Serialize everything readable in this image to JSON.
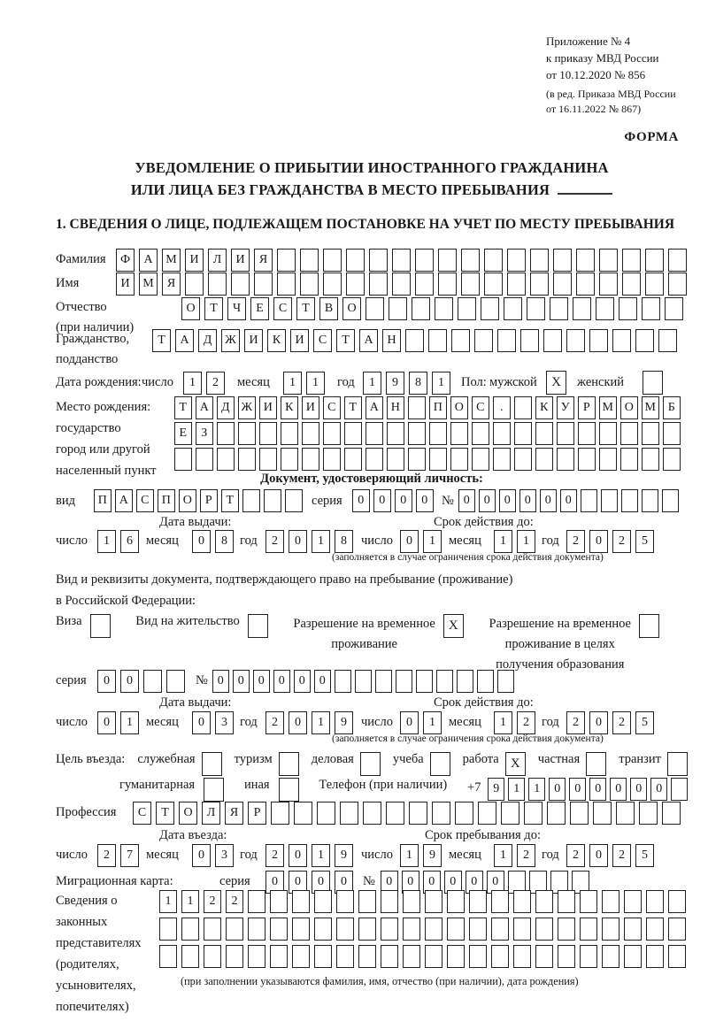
{
  "meta": {
    "annex": [
      "Приложение № 4",
      "к приказу МВД России",
      "от 10.12.2020 № 856"
    ],
    "revision": [
      "(в ред. Приказа МВД России",
      "от 16.11.2022 № 867)"
    ],
    "forma": "ФОРМА"
  },
  "title": {
    "line1": "УВЕДОМЛЕНИЕ О ПРИБЫТИИ ИНОСТРАННОГО ГРАЖДАНИНА",
    "line2": "ИЛИ ЛИЦА БЕЗ ГРАЖДАНСТВА В МЕСТО ПРЕБЫВАНИЯ"
  },
  "section1": "1. СВЕДЕНИЯ О ЛИЦЕ, ПОДЛЕЖАЩЕМ ПОСТАНОВКЕ НА УЧЕТ ПО МЕСТУ ПРЕБЫВАНИЯ",
  "labels": {
    "surname": "Фамилия",
    "given_name": "Имя",
    "patronymic1": "Отчество",
    "patronymic2": "(при наличии)",
    "citizenship1": "Гражданство,",
    "citizenship2": "подданство",
    "birth_date": "Дата рождения:",
    "day": "число",
    "month": "месяц",
    "year": "год",
    "sex": "Пол:",
    "male": "мужской",
    "female": "женский",
    "birthplace": "Место рождения:",
    "state": "государство",
    "city1": "город или другой",
    "city2": "населенный пункт",
    "id_doc_header": "Документ, удостоверяющий личность:",
    "kind": "вид",
    "series": "серия",
    "number_sign": "№",
    "issue_date": "Дата выдачи:",
    "valid_until": "Срок действия до:",
    "valid_note": "(заполняется в случае ограничения срока действия документа)",
    "right_doc1": "Вид и реквизиты документа, подтверждающего право на пребывание (проживание)",
    "right_doc2": "в Российской Федерации:",
    "visa": "Виза",
    "residence_permit": "Вид на жительство",
    "temp_permit1": "Разрешение на временное",
    "temp_permit2": "проживание",
    "temp_edu1": "Разрешение на временное",
    "temp_edu2": "проживание в целях",
    "temp_edu3": "получения образования",
    "purpose": "Цель въезда:",
    "p_business": "служебная",
    "p_tourism": "туризм",
    "p_commercial": "деловая",
    "p_study": "учеба",
    "p_work": "работа",
    "p_private": "частная",
    "p_transit": "транзит",
    "p_humanitarian": "гуманитарная",
    "p_other": "иная",
    "phone": "Телефон (при наличии)",
    "phone_prefix": "+7",
    "profession": "Профессия",
    "entry_date": "Дата въезда:",
    "stay_until": "Срок пребывания до:",
    "migration_card": "Миграционная карта:",
    "rep1": "Сведения о",
    "rep2": "законных",
    "rep3": "представителях",
    "rep4": "(родителях,",
    "rep5": "усыновителях,",
    "rep6": "попечителях)",
    "rep_note": "(при заполнении указываются фамилия, имя, отчество (при наличии), дата рождения)"
  },
  "fields": {
    "surname": {
      "v": "ФАМИЛИЯ",
      "n": 25
    },
    "given_name": {
      "v": "ИМЯ",
      "n": 25
    },
    "patronymic": {
      "v": "ОТЧЕСТВО",
      "n": 22
    },
    "citizenship": {
      "v": "ТАДЖИКИСТАН",
      "n": 23
    },
    "birthplace_line1": {
      "v": "ТАДЖИКИСТАН ПОС. КУРМОМБ",
      "n": 24
    },
    "birthplace_line2": {
      "v": "ЕЗ",
      "n": 24
    },
    "birthplace_line3": {
      "v": "",
      "n": 24
    },
    "id_doc_kind": {
      "v": "ПАСПОРТ",
      "n": 10
    },
    "id_doc_series": {
      "v": "0000",
      "n": 4
    },
    "id_doc_number": {
      "v": "000000",
      "n": 11
    },
    "birth_day": {
      "v": "12",
      "n": 2
    },
    "birth_month": {
      "v": "11",
      "n": 2
    },
    "birth_year": {
      "v": "1981",
      "n": 4
    },
    "id_issue_day": {
      "v": "16",
      "n": 2
    },
    "id_issue_month": {
      "v": "08",
      "n": 2
    },
    "id_issue_year": {
      "v": "2018",
      "n": 4
    },
    "id_valid_day": {
      "v": "01",
      "n": 2
    },
    "id_valid_month": {
      "v": "11",
      "n": 2
    },
    "id_valid_year": {
      "v": "2025",
      "n": 4
    },
    "permit_series": {
      "v": "00",
      "n": 4
    },
    "permit_number": {
      "v": "000000",
      "n": 15
    },
    "permit_issue_day": {
      "v": "01",
      "n": 2
    },
    "permit_issue_month": {
      "v": "03",
      "n": 2
    },
    "permit_issue_year": {
      "v": "2019",
      "n": 4
    },
    "permit_valid_day": {
      "v": "01",
      "n": 2
    },
    "permit_valid_month": {
      "v": "12",
      "n": 2
    },
    "permit_valid_year": {
      "v": "2025",
      "n": 4
    },
    "phone": {
      "v": "911000000",
      "n": 10
    },
    "profession": {
      "v": "СТОЛЯР",
      "n": 24
    },
    "entry_day": {
      "v": "27",
      "n": 2
    },
    "entry_month": {
      "v": "03",
      "n": 2
    },
    "entry_year": {
      "v": "2019",
      "n": 4
    },
    "stay_day": {
      "v": "19",
      "n": 2
    },
    "stay_month": {
      "v": "12",
      "n": 2
    },
    "stay_year": {
      "v": "2025",
      "n": 4
    },
    "migration_series": {
      "v": "0000",
      "n": 4
    },
    "migration_number": {
      "v": "000000",
      "n": 10
    },
    "representatives_line1": {
      "v": "1122",
      "n": 24
    },
    "representatives_line2": {
      "v": "",
      "n": 24
    },
    "representatives_line3": {
      "v": "",
      "n": 24
    }
  },
  "checks": {
    "male": "X",
    "female": "",
    "visa": "",
    "residence_permit": "",
    "temp_residence": "X",
    "temp_residence_edu": "",
    "business": "",
    "tourism": "",
    "commercial": "",
    "study": "",
    "work": "X",
    "private": "",
    "transit": "",
    "humanitarian": "",
    "other": ""
  },
  "colors": {
    "ink": "#1a1a1a",
    "box_border": "#222222"
  }
}
